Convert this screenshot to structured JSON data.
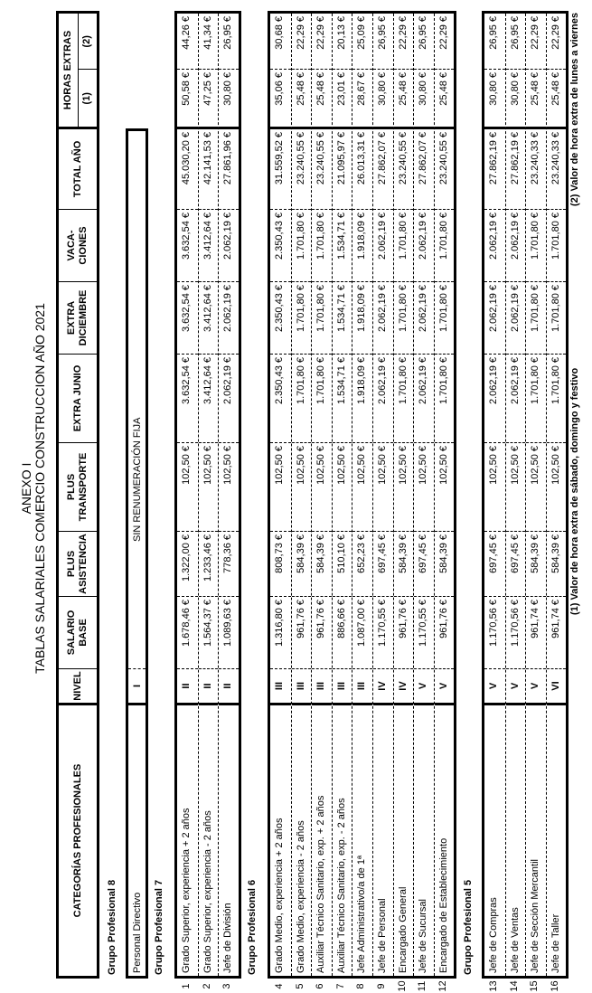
{
  "title": {
    "line1": "ANEXO I",
    "line2": "TABLAS SALARIALES COMERCIO CONSTRUCCION AÑO 2021"
  },
  "headers": {
    "categoria": "CATEGORÍAS PROFESIONALES",
    "nivel": "NIVEL",
    "salario": "SALARIO BASE",
    "asistencia": "PLUS ASISTENCIA",
    "transporte": "PLUS TRANSPORTE",
    "junio": "EXTRA JUNIO",
    "diciembre": "EXTRA DICIEMBRE",
    "vacaciones": "VACA- CIONES",
    "total": "TOTAL AÑO",
    "horas": "HORAS EXTRAS",
    "h1": "(1)",
    "h2": "(2)"
  },
  "group8": {
    "label": "Grupo Profesional 8",
    "cat": "Personal Directivo",
    "nivel": "I",
    "note": "SIN RENUMERACIÓN FIJA"
  },
  "groups": [
    {
      "label": "Grupo Profesional 7",
      "rows": [
        {
          "n": "1",
          "cat": "Grado Superior, experiencia + 2 años",
          "nivel": "II",
          "vals": [
            "1.678,46 €",
            "1.322,00 €",
            "102,50 €",
            "3.632,54 €",
            "3.632,54 €",
            "3.632,54 €",
            "45.030,20 €",
            "50,58 €",
            "44,26 €"
          ]
        },
        {
          "n": "2",
          "cat": "Grado Superior, experiencia - 2 años",
          "nivel": "II",
          "vals": [
            "1.564,37 €",
            "1.233,46 €",
            "102,50 €",
            "3.412,64 €",
            "3.412,64 €",
            "3.412,64 €",
            "42.141,53 €",
            "47,25 €",
            "41,34 €"
          ]
        },
        {
          "n": "3",
          "cat": "Jefe de División",
          "nivel": "II",
          "vals": [
            "1.089,63 €",
            "778,36 €",
            "102,50 €",
            "2.062,19 €",
            "2.062,19 €",
            "2.062,19 €",
            "27.861,96 €",
            "30,80 €",
            "26,95 €"
          ]
        }
      ]
    },
    {
      "label": "Grupo Profesional 6",
      "rows": [
        {
          "n": "4",
          "cat": "Grado Medio, experiencia + 2 años",
          "nivel": "III",
          "vals": [
            "1.316,80 €",
            "808,73 €",
            "102,50 €",
            "2.350,43 €",
            "2.350,43 €",
            "2.350,43 €",
            "31.559,52 €",
            "35,06 €",
            "30,68 €"
          ]
        },
        {
          "n": "5",
          "cat": "Grado Medio, experiencia - 2 años",
          "nivel": "III",
          "vals": [
            "961,76 €",
            "584,39 €",
            "102,50 €",
            "1.701,80 €",
            "1.701,80 €",
            "1.701,80 €",
            "23.240,55 €",
            "25,48 €",
            "22,29 €"
          ]
        },
        {
          "n": "6",
          "cat": "Auxiliar Técnico Sanitario, exp. + 2 años",
          "nivel": "III",
          "vals": [
            "961,76 €",
            "584,39 €",
            "102,50 €",
            "1.701,80 €",
            "1.701,80 €",
            "1.701,80 €",
            "23.240,55 €",
            "25,48 €",
            "22,29 €"
          ]
        },
        {
          "n": "7",
          "cat": "Auxiliar Técnico Sanitario, exp. - 2 años",
          "nivel": "III",
          "vals": [
            "886,66 €",
            "510,10 €",
            "102,50 €",
            "1.534,71 €",
            "1.534,71 €",
            "1.534,71 €",
            "21.095,97 €",
            "23,01 €",
            "20,13 €"
          ]
        },
        {
          "n": "8",
          "cat": "Jefe Administrativo/a de 1ª",
          "nivel": "III",
          "vals": [
            "1.087,00 €",
            "652,23 €",
            "102,50 €",
            "1.918,09 €",
            "1.918,09 €",
            "1.918,09 €",
            "26.013,31 €",
            "28,67 €",
            "25,09 €"
          ]
        },
        {
          "n": "9",
          "cat": "Jefe de Personal",
          "nivel": "IV",
          "vals": [
            "1.170,55 €",
            "697,45 €",
            "102,50 €",
            "2.062,19 €",
            "2.062,19 €",
            "2.062,19 €",
            "27.862,07 €",
            "30,80 €",
            "26,95 €"
          ]
        },
        {
          "n": "10",
          "cat": "Encargado General",
          "nivel": "IV",
          "vals": [
            "961,76 €",
            "584,39 €",
            "102,50 €",
            "1.701,80 €",
            "1.701,80 €",
            "1.701,80 €",
            "23.240,55 €",
            "25,48 €",
            "22,29 €"
          ]
        },
        {
          "n": "11",
          "cat": "Jefe de Sucursal",
          "nivel": "V",
          "vals": [
            "1.170,55 €",
            "697,45 €",
            "102,50 €",
            "2.062,19 €",
            "2.062,19 €",
            "2.062,19 €",
            "27.862,07 €",
            "30,80 €",
            "26,95 €"
          ]
        },
        {
          "n": "12",
          "cat": "Encargado de Establecimiento",
          "nivel": "V",
          "vals": [
            "961,76 €",
            "584,39 €",
            "102,50 €",
            "1.701,80 €",
            "1.701,80 €",
            "1.701,80 €",
            "23.240,55 €",
            "25,48 €",
            "22,29 €"
          ]
        }
      ]
    },
    {
      "label": "Grupo Profesional 5",
      "rows": [
        {
          "n": "13",
          "cat": "Jefe de Compras",
          "nivel": "V",
          "vals": [
            "1.170,56 €",
            "697,45 €",
            "102,50 €",
            "2.062,19 €",
            "2.062,19 €",
            "2.062,19 €",
            "27.862,19 €",
            "30,80 €",
            "26,95 €"
          ]
        },
        {
          "n": "14",
          "cat": "Jefe de Ventas",
          "nivel": "V",
          "vals": [
            "1.170,56 €",
            "697,45 €",
            "102,50 €",
            "2.062,19 €",
            "2.062,19 €",
            "2.062,19 €",
            "27.862,19 €",
            "30,80 €",
            "26,95 €"
          ]
        },
        {
          "n": "15",
          "cat": "Jefe de Sección Mercantil",
          "nivel": "V",
          "vals": [
            "961,74 €",
            "584,39 €",
            "102,50 €",
            "1.701,80 €",
            "1.701,80 €",
            "1.701,80 €",
            "23.240,33 €",
            "25,48 €",
            "22,29 €"
          ]
        },
        {
          "n": "16",
          "cat": "Jefe de Taller",
          "nivel": "VI",
          "vals": [
            "961,74 €",
            "584,39 €",
            "102,50 €",
            "1.701,80 €",
            "1.701,80 €",
            "1.701,80 €",
            "23.240,33 €",
            "25,48 €",
            "22,29 €"
          ]
        }
      ]
    }
  ],
  "footnotes": {
    "f1": "(1) Valor de hora extra de sábado, domingo y festivo",
    "f2": "(2) Valor de hora extra de lunes a viernes"
  }
}
